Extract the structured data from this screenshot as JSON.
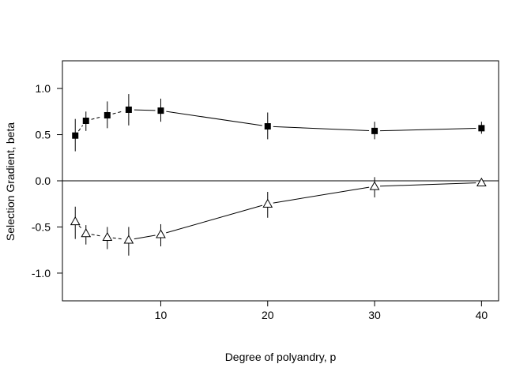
{
  "chart_data": {
    "type": "scatter",
    "title": "",
    "xlabel": "Degree of polyandry, p",
    "ylabel": "Selection Gradient, beta",
    "xlim": [
      0.8,
      41.6
    ],
    "ylim": [
      -1.3,
      1.3
    ],
    "x_ticks": [
      10,
      20,
      30,
      40
    ],
    "x_tick_labels": [
      "10",
      "20",
      "30",
      "40"
    ],
    "y_ticks": [
      -1.0,
      -0.5,
      0.0,
      0.5,
      1.0
    ],
    "y_tick_labels": [
      "-1.0",
      "-0.5",
      "0.0",
      "0.5",
      "1.0"
    ],
    "reference_line": 0.0,
    "grid": false,
    "series": [
      {
        "marker": "filled-square",
        "color": "#000000",
        "x": [
          2,
          3,
          5,
          7,
          10,
          20,
          30,
          40
        ],
        "y": [
          0.49,
          0.65,
          0.71,
          0.77,
          0.76,
          0.59,
          0.54,
          0.57
        ],
        "lower": [
          0.32,
          0.54,
          0.57,
          0.6,
          0.64,
          0.45,
          0.45,
          0.51
        ],
        "upper": [
          0.67,
          0.75,
          0.86,
          0.94,
          0.89,
          0.74,
          0.64,
          0.64
        ],
        "line_styles": [
          "dashed",
          "dashed",
          "dashed",
          "solid",
          "solid",
          "solid",
          "solid"
        ]
      },
      {
        "marker": "open-triangle",
        "color": "#000000",
        "x": [
          2,
          3,
          5,
          7,
          10,
          20,
          30,
          40
        ],
        "y": [
          -0.44,
          -0.57,
          -0.61,
          -0.64,
          -0.58,
          -0.25,
          -0.06,
          -0.02
        ],
        "lower": [
          -0.63,
          -0.69,
          -0.74,
          -0.81,
          -0.71,
          -0.4,
          -0.18,
          -0.05
        ],
        "upper": [
          -0.28,
          -0.48,
          -0.5,
          -0.5,
          -0.47,
          -0.12,
          0.04,
          0.0
        ],
        "line_styles": [
          "dashed",
          "dashed",
          "dashed",
          "solid",
          "solid",
          "solid",
          "solid"
        ]
      }
    ]
  }
}
